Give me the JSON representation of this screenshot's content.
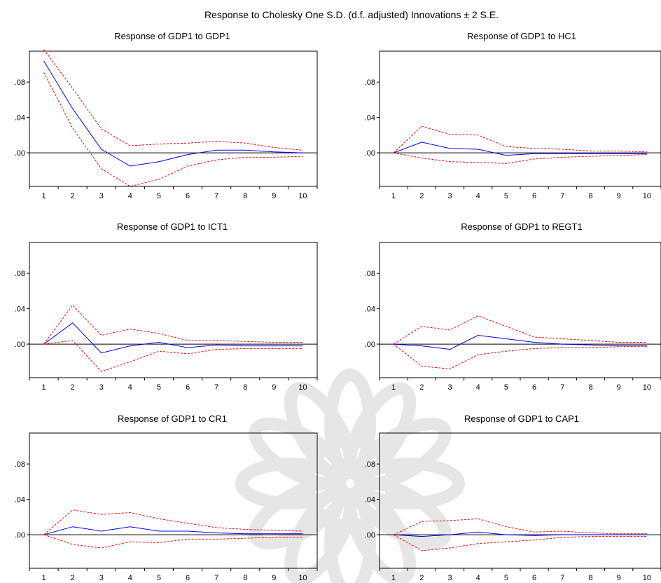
{
  "figure": {
    "title": "Response to Cholesky One S.D. (d.f. adjusted) Innovations ± 2 S.E."
  },
  "colors": {
    "response": "#0000ff",
    "bands": "#ff0000",
    "zero_line": "#000000",
    "watermark": "#e6e6e6"
  },
  "chart_data": [
    {
      "type": "line",
      "title": "Response of GDP1 to GDP1",
      "x": [
        1,
        2,
        3,
        4,
        5,
        6,
        7,
        8,
        9,
        10
      ],
      "ylim": [
        -0.038,
        0.115
      ],
      "y_ticks": [
        ".00",
        ".04",
        ".08"
      ],
      "series": [
        {
          "role": "response",
          "values": [
            0.104,
            0.05,
            0.004,
            -0.015,
            -0.01,
            -0.002,
            0.003,
            0.003,
            0.001,
            0.0
          ]
        },
        {
          "role": "upper",
          "values": [
            0.117,
            0.073,
            0.027,
            0.008,
            0.01,
            0.011,
            0.013,
            0.011,
            0.006,
            0.003
          ]
        },
        {
          "role": "lower",
          "values": [
            0.091,
            0.028,
            -0.018,
            -0.038,
            -0.03,
            -0.015,
            -0.008,
            -0.005,
            -0.005,
            -0.004
          ]
        }
      ]
    },
    {
      "type": "line",
      "title": "Response of GDP1 to HC1",
      "x": [
        1,
        2,
        3,
        4,
        5,
        6,
        7,
        8,
        9,
        10
      ],
      "ylim": [
        -0.038,
        0.115
      ],
      "y_ticks": [
        ".00",
        ".04",
        ".08"
      ],
      "series": [
        {
          "role": "response",
          "values": [
            0.0,
            0.012,
            0.005,
            0.004,
            -0.003,
            -0.001,
            -0.001,
            -0.001,
            -0.001,
            -0.001
          ]
        },
        {
          "role": "upper",
          "values": [
            0.0,
            0.03,
            0.021,
            0.02,
            0.007,
            0.005,
            0.004,
            0.002,
            0.002,
            0.001
          ]
        },
        {
          "role": "lower",
          "values": [
            0.0,
            -0.006,
            -0.01,
            -0.011,
            -0.012,
            -0.007,
            -0.005,
            -0.004,
            -0.003,
            -0.002
          ]
        }
      ]
    },
    {
      "type": "line",
      "title": "Response of GDP1 to ICT1",
      "x": [
        1,
        2,
        3,
        4,
        5,
        6,
        7,
        8,
        9,
        10
      ],
      "ylim": [
        -0.038,
        0.115
      ],
      "y_ticks": [
        ".00",
        ".04",
        ".08"
      ],
      "series": [
        {
          "role": "response",
          "values": [
            0.0,
            0.024,
            -0.01,
            -0.002,
            0.002,
            -0.004,
            -0.001,
            -0.002,
            -0.002,
            -0.002
          ]
        },
        {
          "role": "upper",
          "values": [
            0.0,
            0.044,
            0.01,
            0.017,
            0.012,
            0.004,
            0.004,
            0.003,
            0.002,
            0.002
          ]
        },
        {
          "role": "lower",
          "values": [
            0.0,
            0.004,
            -0.031,
            -0.02,
            -0.008,
            -0.011,
            -0.006,
            -0.005,
            -0.005,
            -0.005
          ]
        }
      ]
    },
    {
      "type": "line",
      "title": "Response of GDP1 to REGT1",
      "x": [
        1,
        2,
        3,
        4,
        5,
        6,
        7,
        8,
        9,
        10
      ],
      "ylim": [
        -0.038,
        0.115
      ],
      "y_ticks": [
        ".00",
        ".04",
        ".08"
      ],
      "series": [
        {
          "role": "response",
          "values": [
            0.0,
            -0.002,
            -0.006,
            0.01,
            0.006,
            0.002,
            0.0,
            -0.001,
            -0.002,
            -0.002
          ]
        },
        {
          "role": "upper",
          "values": [
            0.0,
            0.02,
            0.016,
            0.032,
            0.02,
            0.008,
            0.006,
            0.004,
            0.002,
            0.002
          ]
        },
        {
          "role": "lower",
          "values": [
            0.0,
            -0.025,
            -0.028,
            -0.012,
            -0.008,
            -0.005,
            -0.004,
            -0.004,
            -0.003,
            -0.003
          ]
        }
      ]
    },
    {
      "type": "line",
      "title": "Response of GDP1 to CR1",
      "x": [
        1,
        2,
        3,
        4,
        5,
        6,
        7,
        8,
        9,
        10
      ],
      "ylim": [
        -0.038,
        0.115
      ],
      "y_ticks": [
        ".00",
        ".04",
        ".08"
      ],
      "series": [
        {
          "role": "response",
          "values": [
            0.0,
            0.009,
            0.004,
            0.009,
            0.004,
            0.004,
            0.002,
            0.001,
            0.001,
            0.001
          ]
        },
        {
          "role": "upper",
          "values": [
            0.0,
            0.028,
            0.023,
            0.025,
            0.018,
            0.013,
            0.008,
            0.006,
            0.005,
            0.004
          ]
        },
        {
          "role": "lower",
          "values": [
            0.0,
            -0.011,
            -0.015,
            -0.008,
            -0.009,
            -0.005,
            -0.005,
            -0.004,
            -0.003,
            -0.003
          ]
        }
      ]
    },
    {
      "type": "line",
      "title": "Response of GDP1 to CAP1",
      "x": [
        1,
        2,
        3,
        4,
        5,
        6,
        7,
        8,
        9,
        10
      ],
      "ylim": [
        -0.038,
        0.115
      ],
      "y_ticks": [
        ".00",
        ".04",
        ".08"
      ],
      "series": [
        {
          "role": "response",
          "values": [
            0.0,
            -0.002,
            0.0,
            0.003,
            0.0,
            -0.001,
            0.0,
            0.0,
            0.0,
            0.0
          ]
        },
        {
          "role": "upper",
          "values": [
            0.0,
            0.015,
            0.016,
            0.018,
            0.009,
            0.003,
            0.004,
            0.002,
            0.001,
            0.001
          ]
        },
        {
          "role": "lower",
          "values": [
            0.0,
            -0.018,
            -0.015,
            -0.01,
            -0.008,
            -0.006,
            -0.003,
            -0.002,
            -0.002,
            -0.002
          ]
        }
      ]
    }
  ]
}
